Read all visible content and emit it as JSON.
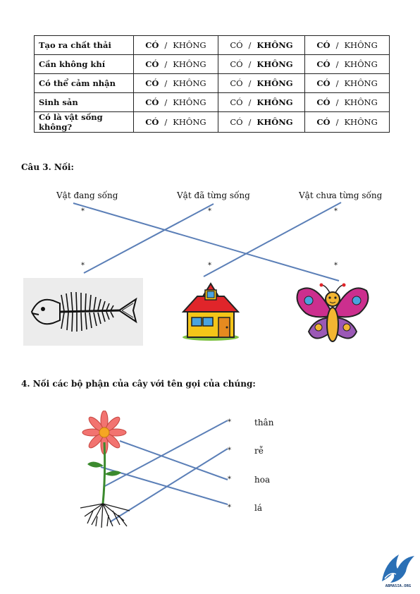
{
  "table": {
    "rows": [
      {
        "label": "Tạo ra chất thải",
        "c1a": "CÓ",
        "c1b": "KHÔNG",
        "c2a": "CÓ",
        "c2b": "KHÔNG",
        "c3a": "CÓ",
        "c3b": "KHÔNG"
      },
      {
        "label": "Cần không khí",
        "c1a": "CÓ",
        "c1b": "KHÔNG",
        "c2a": "CÓ",
        "c2b": "KHÔNG",
        "c3a": "CÓ",
        "c3b": "KHÔNG"
      },
      {
        "label": "Có thể cảm nhận",
        "c1a": "CÓ",
        "c1b": "KHÔNG",
        "c2a": "CÓ",
        "c2b": "KHÔNG",
        "c3a": "CÓ",
        "c3b": "KHÔNG"
      },
      {
        "label": "Sinh sản",
        "c1a": "CÓ",
        "c1b": "KHÔNG",
        "c2a": "CÓ",
        "c2b": "KHÔNG",
        "c3a": "CÓ",
        "c3b": "KHÔNG"
      },
      {
        "label": "Có là vật sống không?",
        "c1a": "CÓ",
        "c1b": "KHÔNG",
        "c2a": "CÓ",
        "c2b": "KHÔNG",
        "c3a": "CÓ",
        "c3b": "KHÔNG"
      }
    ],
    "sep": "/"
  },
  "q3": {
    "title": "Câu 3. Nối:",
    "col1": "Vật đang sống",
    "col2": "Vật đã từng sống",
    "col3": "Vật chưa từng sống",
    "star": "*"
  },
  "q4": {
    "title": "4. Nối các bộ phận của cây với tên gọi của chúng:",
    "parts": [
      "thân",
      "rễ",
      "hoa",
      "lá"
    ],
    "star": "*"
  },
  "colors": {
    "line": "#5b7fb7",
    "roof": "#e0252a",
    "wall": "#f5c518",
    "wing": "#cc2f8e",
    "body": "#f2b632"
  },
  "icons": [
    "fish-skeleton-icon",
    "house-icon",
    "butterfly-icon",
    "flower-plant-icon",
    "bird-logo-icon"
  ],
  "logo": {
    "text": "ABMASIA.ORG"
  }
}
